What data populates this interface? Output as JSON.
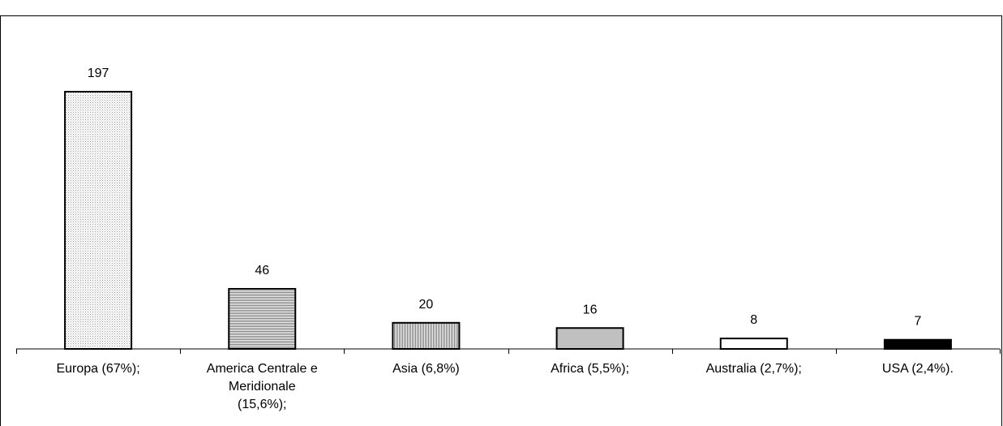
{
  "caption": "",
  "chart_data": {
    "type": "bar",
    "title": "",
    "xlabel": "",
    "ylabel": "",
    "ylim": [
      0,
      197
    ],
    "grid": false,
    "categories": [
      [
        "Europa (67%);"
      ],
      [
        "America Centrale e",
        "Meridionale",
        "(15,6%);"
      ],
      [
        "Asia (6,8%)"
      ],
      [
        "Africa (5,5%);"
      ],
      [
        "Australia (2,7%);"
      ],
      [
        "USA (2,4%)."
      ]
    ],
    "values": [
      197,
      46,
      20,
      16,
      8,
      7
    ],
    "value_labels": [
      "197",
      "46",
      "20",
      "16",
      "8",
      "7"
    ],
    "bar_fills": [
      "dots",
      "hlines",
      "vlines",
      "#c0c0c0",
      "#ffffff",
      "#000000"
    ]
  }
}
